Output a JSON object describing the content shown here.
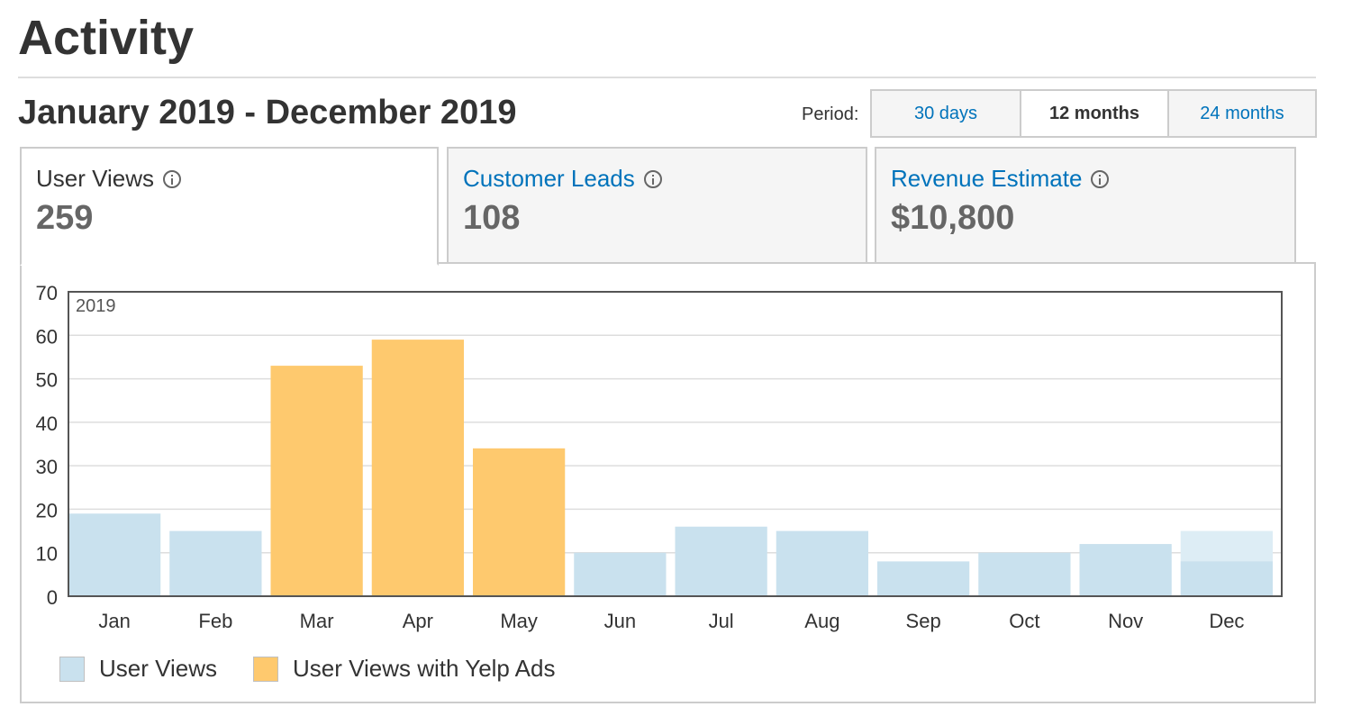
{
  "page": {
    "title": "Activity",
    "date_range": "January 2019 - December 2019"
  },
  "period": {
    "label": "Period:",
    "options": [
      "30 days",
      "12 months",
      "24 months"
    ],
    "selected": "12 months"
  },
  "tabs": [
    {
      "label": "User Views",
      "value": "259",
      "active": true
    },
    {
      "label": "Customer Leads",
      "value": "108",
      "active": false
    },
    {
      "label": "Revenue Estimate",
      "value": "$10,800",
      "active": false
    }
  ],
  "colors": {
    "user_views": "#c9e1ee",
    "user_views_yelp_ads": "#fec96e",
    "link": "#0073bb",
    "partial": "#ddedf5"
  },
  "chart_data": {
    "type": "bar",
    "year_label": "2019",
    "categories": [
      "Jan",
      "Feb",
      "Mar",
      "Apr",
      "May",
      "Jun",
      "Jul",
      "Aug",
      "Sep",
      "Oct",
      "Nov",
      "Dec"
    ],
    "values": [
      19,
      15,
      53,
      59,
      34,
      10,
      16,
      15,
      8,
      10,
      12,
      8
    ],
    "series_of_bar": [
      "User Views",
      "User Views",
      "User Views with Yelp Ads",
      "User Views with Yelp Ads",
      "User Views with Yelp Ads",
      "User Views",
      "User Views",
      "User Views",
      "User Views",
      "User Views",
      "User Views",
      "User Views"
    ],
    "projected": [
      null,
      null,
      null,
      null,
      null,
      null,
      null,
      null,
      null,
      null,
      null,
      15
    ],
    "ylim": [
      0,
      70
    ],
    "yticks": [
      0,
      10,
      20,
      30,
      40,
      50,
      60,
      70
    ],
    "grid": true,
    "legend": [
      "User Views",
      "User Views with Yelp Ads"
    ],
    "legend_position": "bottom-left"
  }
}
